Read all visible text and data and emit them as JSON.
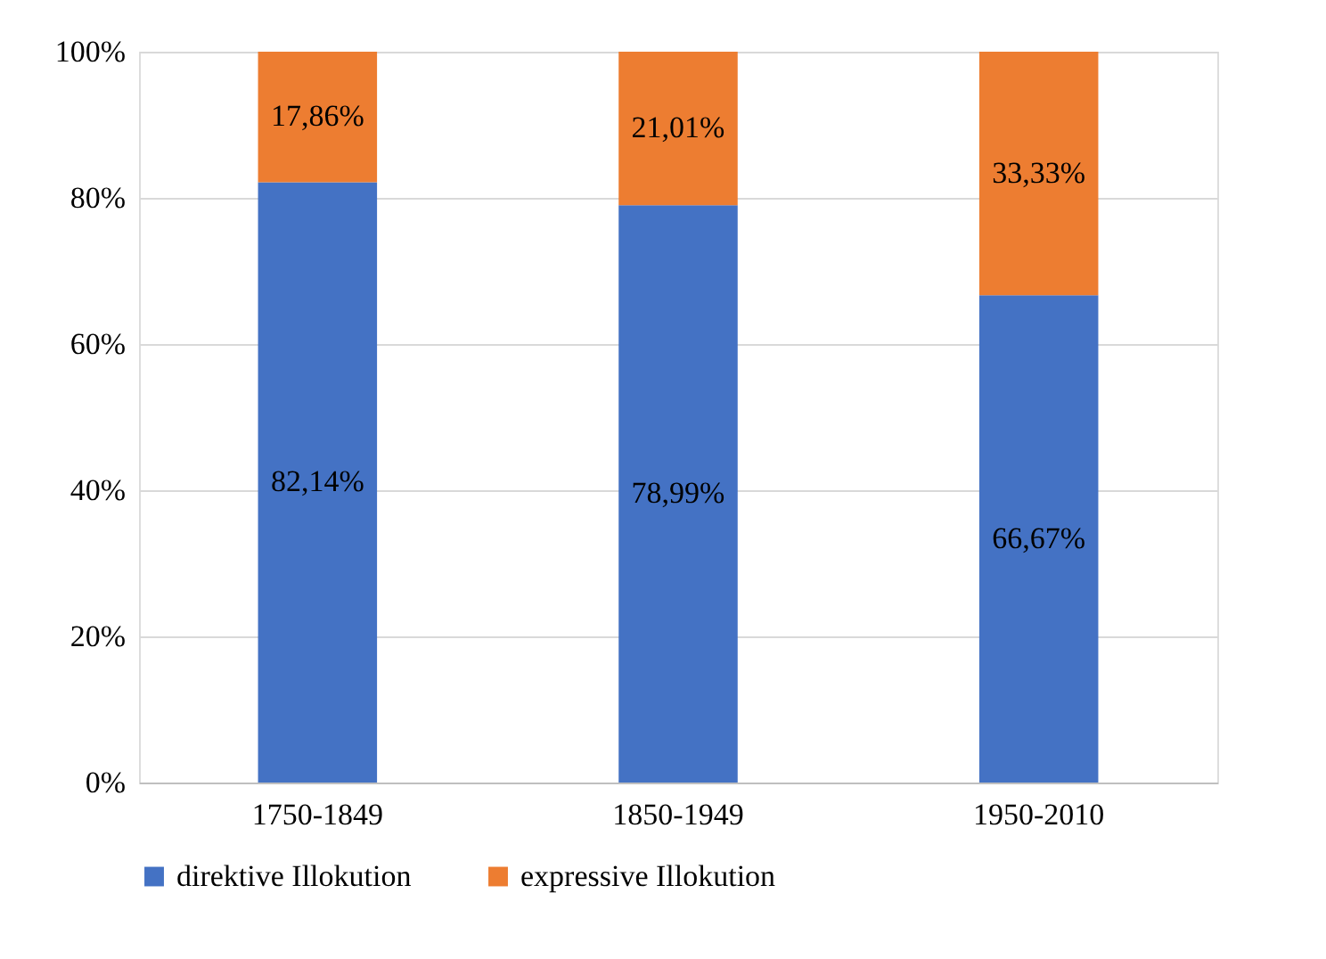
{
  "chart_data": {
    "type": "bar",
    "stacked": true,
    "categories": [
      "1750-1849",
      "1850-1949",
      "1950-2010"
    ],
    "series": [
      {
        "name": "direktive Illokution",
        "color": "#4472c4",
        "values": [
          82.14,
          78.99,
          66.67
        ],
        "value_labels": [
          "82,14%",
          "78,99%",
          "66,67%"
        ]
      },
      {
        "name": "expressive Illokution",
        "color": "#ed7d31",
        "values": [
          17.86,
          21.01,
          33.33
        ],
        "value_labels": [
          "17,86%",
          "21,01%",
          "33,33%"
        ]
      }
    ],
    "ylim": [
      0,
      100
    ],
    "yticks": [
      {
        "value": 0,
        "label": "0%"
      },
      {
        "value": 20,
        "label": "20%"
      },
      {
        "value": 40,
        "label": "40%"
      },
      {
        "value": 60,
        "label": "60%"
      },
      {
        "value": 80,
        "label": "80%"
      },
      {
        "value": 100,
        "label": "100%"
      }
    ],
    "grid": "y",
    "legend": "bottom"
  }
}
